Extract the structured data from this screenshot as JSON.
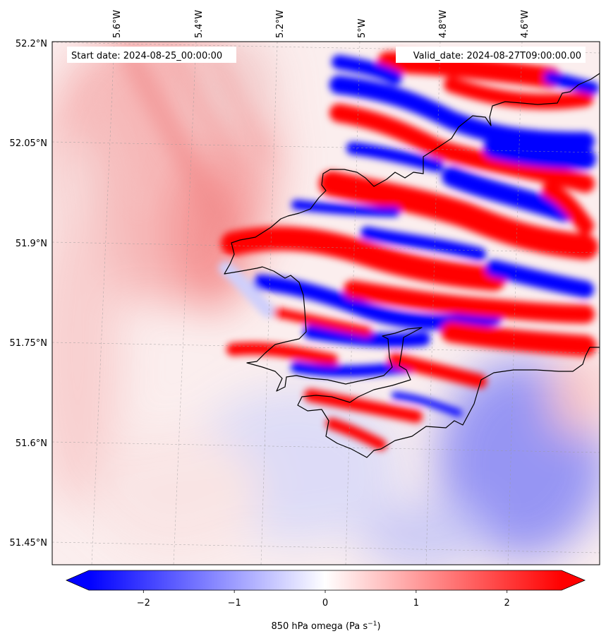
{
  "map": {
    "start_label": "Start date: 2024-08-25_00:00:00",
    "valid_label": "Valid_date: 2024-08-27T09:00:00.00",
    "lon_labels": [
      "5.6°W",
      "5.4°W",
      "5.2°W",
      "5°W",
      "4.8°W",
      "4.6°W"
    ],
    "lat_labels": [
      "52.2°N",
      "52.05°N",
      "51.9°N",
      "51.75°N",
      "51.6°N",
      "51.45°N"
    ],
    "colors": {
      "negative": "#0000ff",
      "neutral": "#ffffff",
      "positive": "#ff0000",
      "coast": "#000000"
    }
  },
  "colorbar": {
    "label_main": "850 hPa omega (Pa s",
    "label_exp": "−1",
    "label_close": ")",
    "min": -2.6,
    "max": 2.6,
    "ticks": [
      {
        "value": -2,
        "label": "−2"
      },
      {
        "value": -1,
        "label": "−1"
      },
      {
        "value": 0,
        "label": "0"
      },
      {
        "value": 1,
        "label": "1"
      },
      {
        "value": 2,
        "label": "2"
      }
    ]
  }
}
